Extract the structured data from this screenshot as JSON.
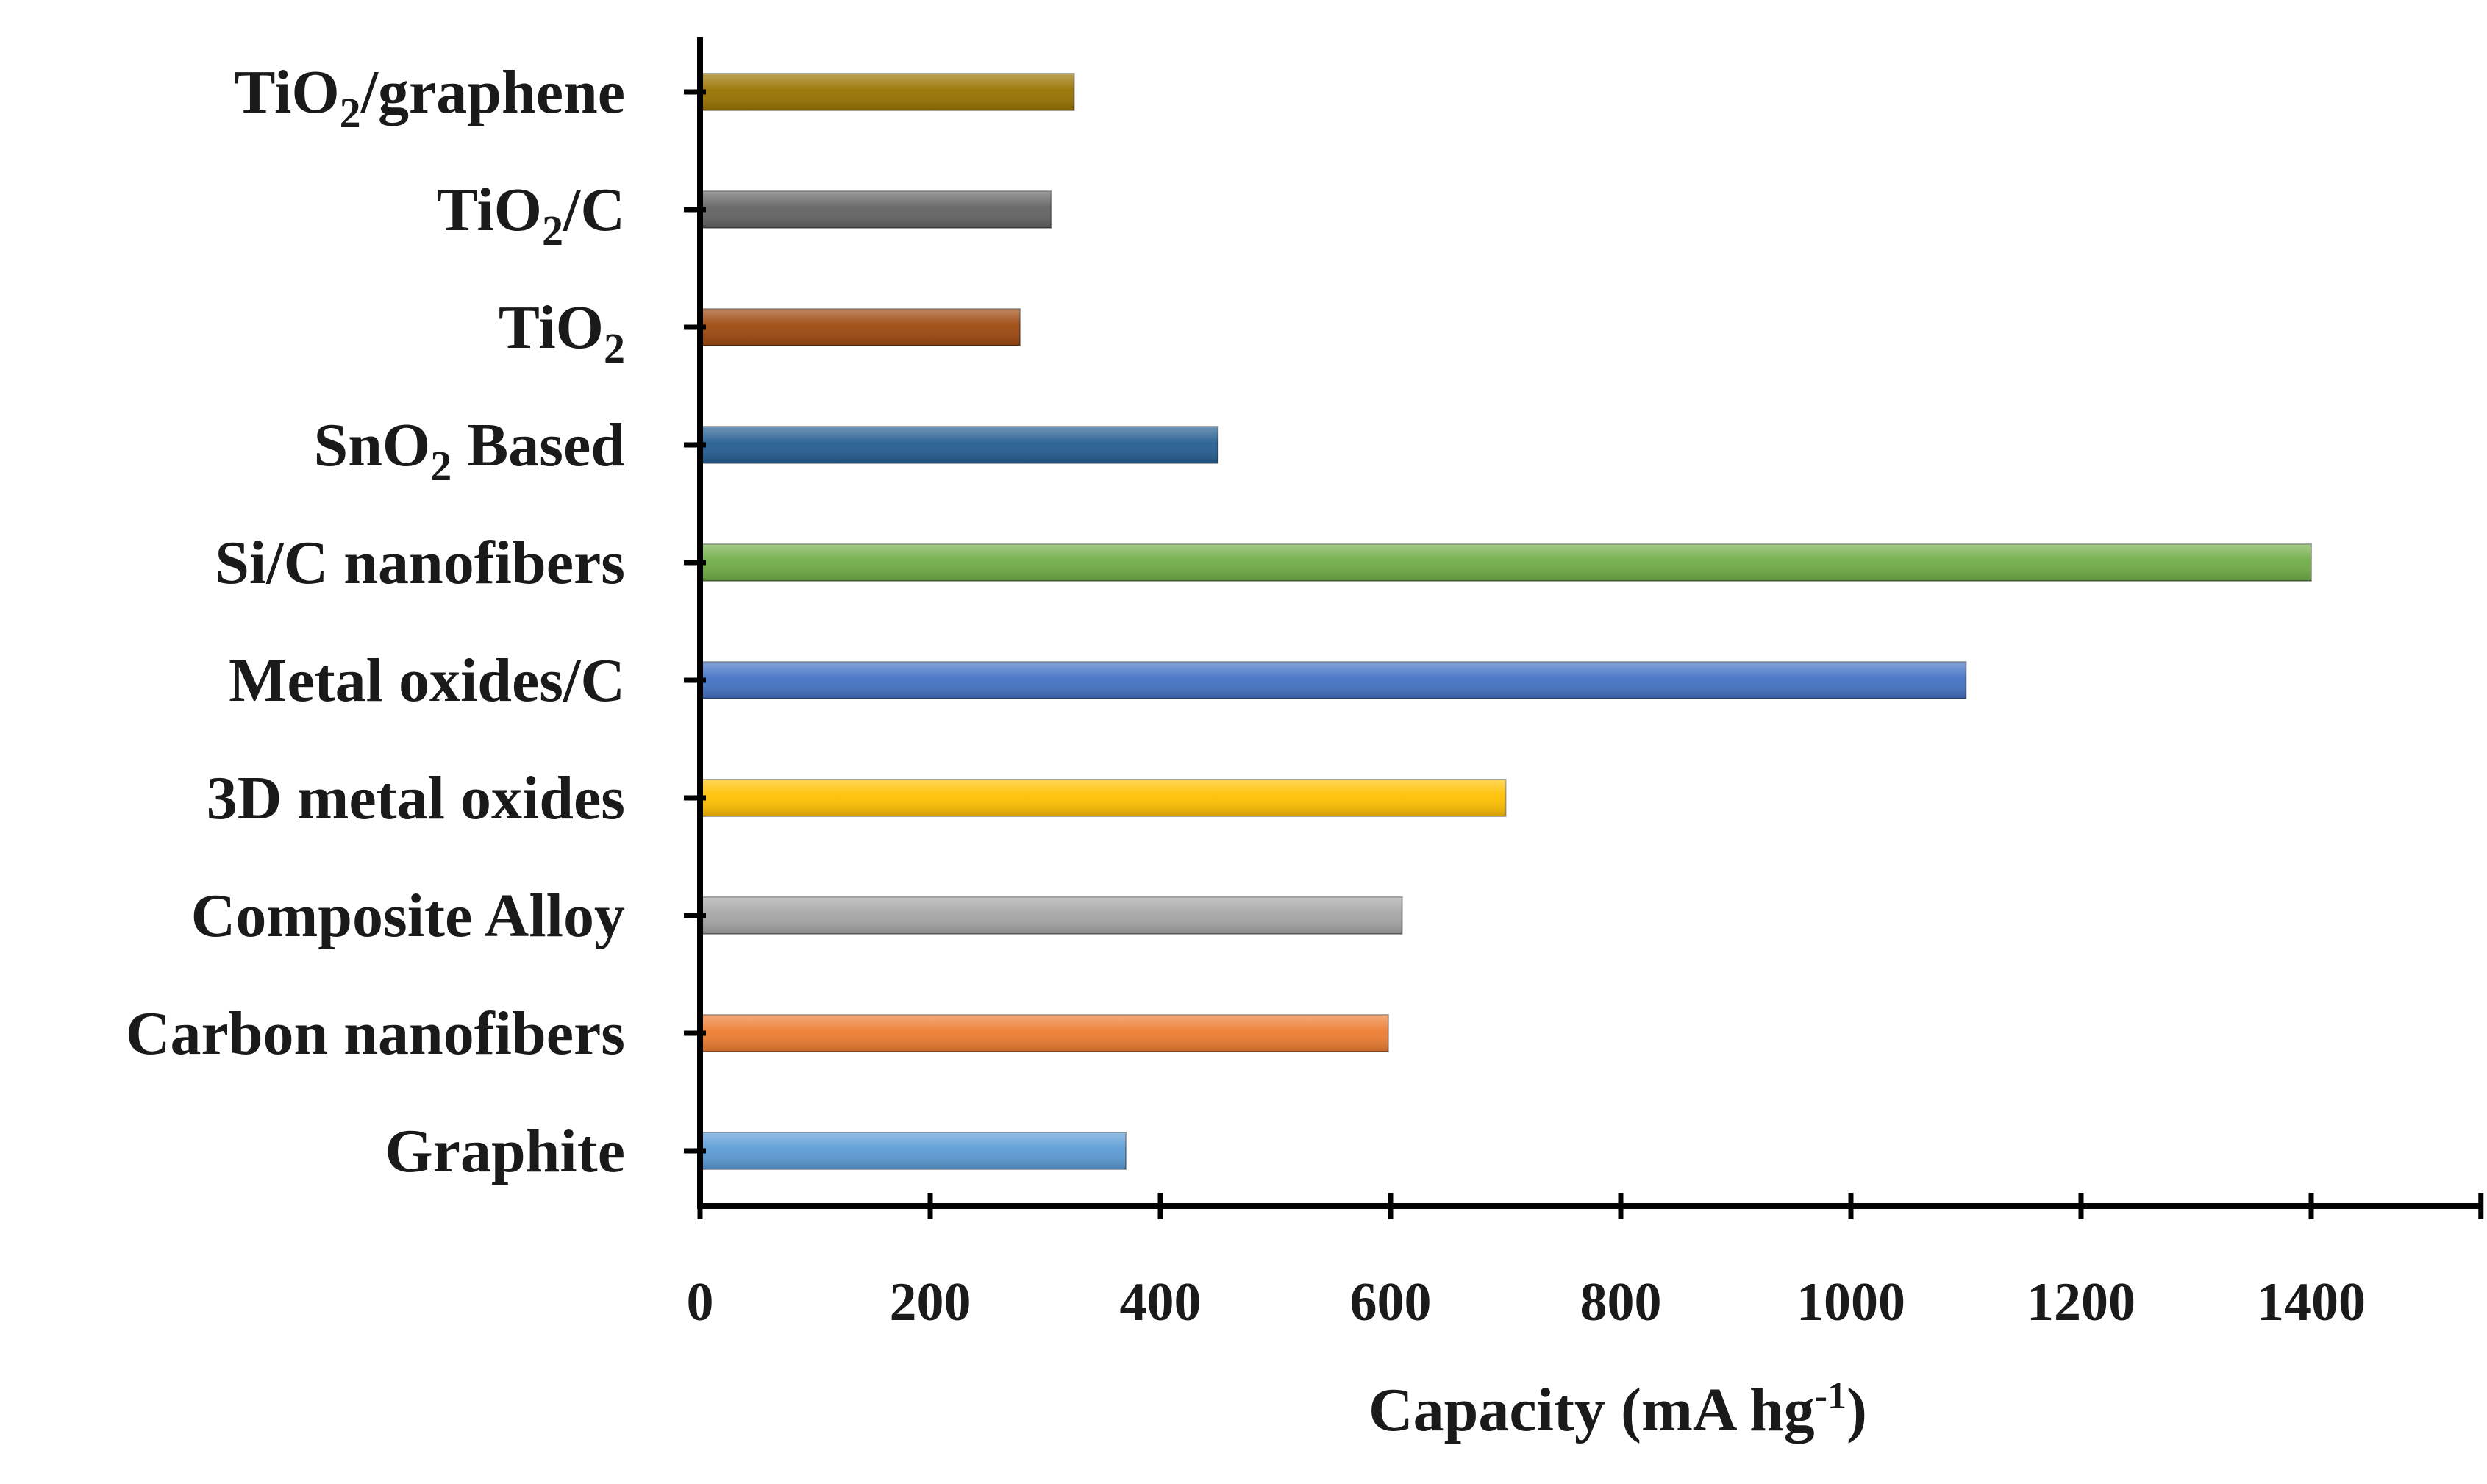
{
  "chart_data": {
    "type": "bar",
    "orientation": "horizontal",
    "title": "",
    "xlabel": "Capacity (mA hg-1)",
    "xlabel_parts": {
      "main": "Capacity (mA hg",
      "sup": "-1",
      "end": ")"
    },
    "ylabel": "",
    "xlim": [
      0,
      1550
    ],
    "xticks": [
      0,
      200,
      400,
      600,
      800,
      1000,
      1200,
      1400
    ],
    "xtick_labels": [
      "0",
      "200",
      "400",
      "600",
      "800",
      "1000",
      "1200",
      "1400"
    ],
    "grid": false,
    "legend": "none",
    "categories": [
      {
        "label": "Graphite",
        "value": 370,
        "color": "#5b9bd5"
      },
      {
        "label": "Carbon nanofibers",
        "value": 598,
        "color": "#ed7d31"
      },
      {
        "label": "Composite Alloy",
        "value": 610,
        "color": "#a5a5a5"
      },
      {
        "label": "3D metal oxides",
        "value": 700,
        "color": "#ffc000"
      },
      {
        "label": "Metal oxides/C",
        "value": 1100,
        "color": "#4472c4"
      },
      {
        "label": "Si/C nanofibers",
        "value": 1400,
        "color": "#70ad47"
      },
      {
        "label": "SnO2 Based",
        "parts": [
          "SnO",
          "2",
          " Based"
        ],
        "value": 450,
        "color": "#255e91"
      },
      {
        "label": "TiO2",
        "parts": [
          "TiO",
          "2",
          ""
        ],
        "value": 278,
        "color": "#9e480e"
      },
      {
        "label": "TiO2/C",
        "parts": [
          "TiO",
          "2",
          "/C"
        ],
        "value": 305,
        "color": "#636363"
      },
      {
        "label": "TiO2/graphene",
        "parts": [
          "TiO",
          "2",
          "/graphene"
        ],
        "value": 325,
        "color": "#997300"
      }
    ]
  }
}
